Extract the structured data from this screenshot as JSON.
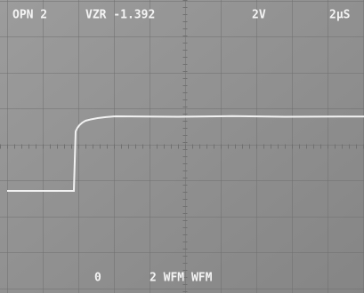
{
  "header": {
    "mode": "OPN 2",
    "offset": "VZR -1.392",
    "volts_per_div": "2V",
    "time_per_div": "2µS"
  },
  "footer": {
    "ground": "0",
    "waveforms": "2 WFM WFM"
  }
}
